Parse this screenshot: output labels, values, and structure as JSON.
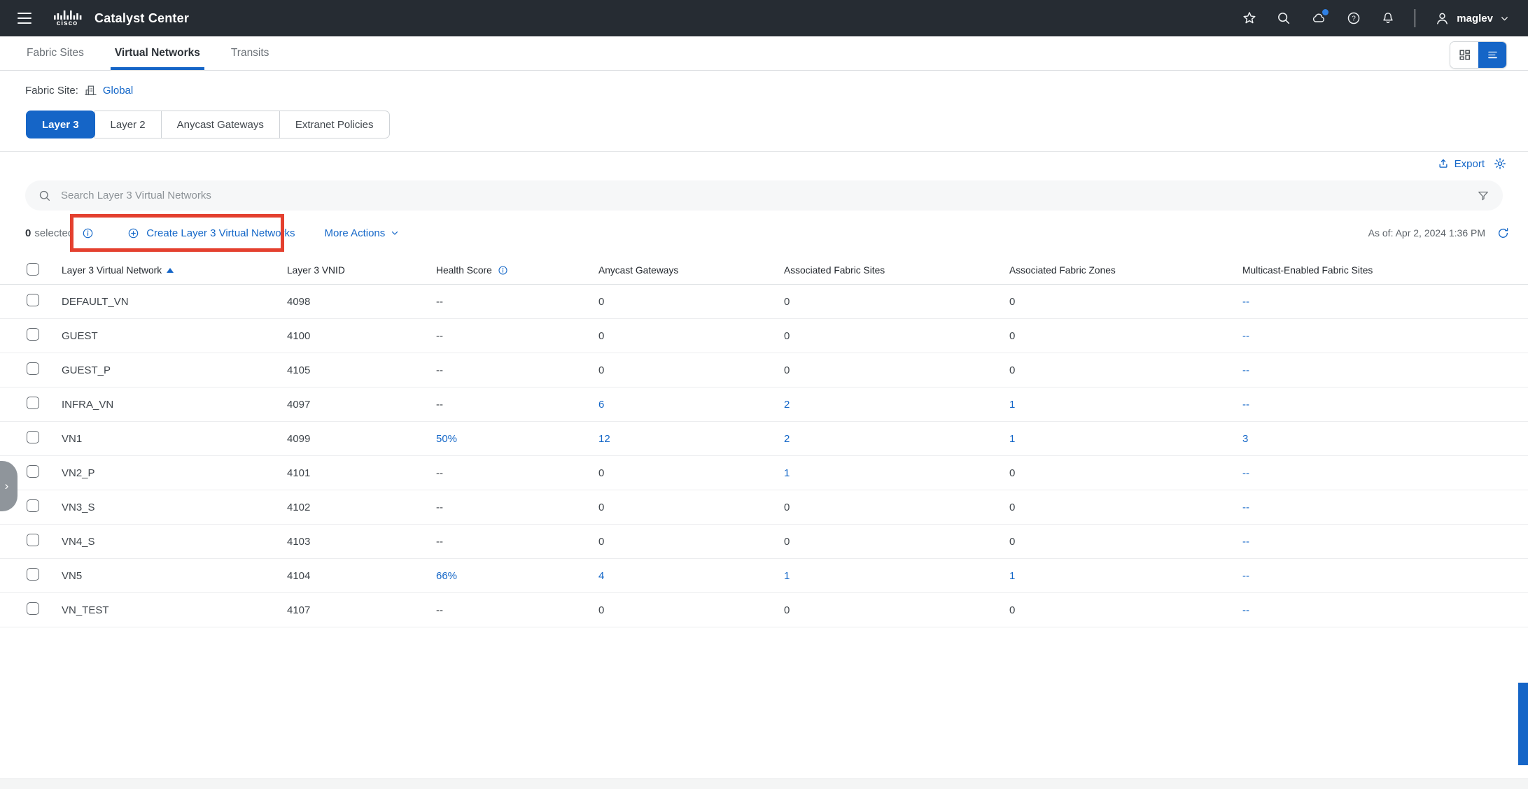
{
  "colors": {
    "accent": "#1565c7",
    "link": "#1467c8",
    "highlight": "#e4402f",
    "header_bg": "#262c33"
  },
  "header": {
    "brand": "cisco",
    "title": "Catalyst Center",
    "username": "maglev"
  },
  "nav_tabs": [
    {
      "label": "Fabric Sites",
      "active": false
    },
    {
      "label": "Virtual Networks",
      "active": true
    },
    {
      "label": "Transits",
      "active": false
    }
  ],
  "fabric_site": {
    "label": "Fabric Site:",
    "value": "Global"
  },
  "layer_tabs": [
    {
      "label": "Layer 3",
      "active": true
    },
    {
      "label": "Layer 2",
      "active": false
    },
    {
      "label": "Anycast Gateways",
      "active": false
    },
    {
      "label": "Extranet Policies",
      "active": false
    }
  ],
  "toolbar": {
    "export_label": "Export"
  },
  "search": {
    "placeholder": "Search Layer 3 Virtual Networks"
  },
  "actions": {
    "selected_count": "0",
    "selected_label": "selected",
    "create_label": "Create Layer 3 Virtual Networks",
    "more_label": "More Actions",
    "as_of": "As of: Apr 2, 2024 1:36 PM"
  },
  "table": {
    "columns": [
      "Layer 3 Virtual Network",
      "Layer 3 VNID",
      "Health Score",
      "Anycast Gateways",
      "Associated Fabric Sites",
      "Associated Fabric Zones",
      "Multicast-Enabled Fabric Sites"
    ],
    "rows": [
      {
        "cells": [
          {
            "text": "DEFAULT_VN",
            "link": false
          },
          {
            "text": "4098",
            "link": false
          },
          {
            "text": "--",
            "link": false
          },
          {
            "text": "0",
            "link": false
          },
          {
            "text": "0",
            "link": false
          },
          {
            "text": "0",
            "link": false
          },
          {
            "text": "--",
            "link": true
          }
        ]
      },
      {
        "cells": [
          {
            "text": "GUEST",
            "link": false
          },
          {
            "text": "4100",
            "link": false
          },
          {
            "text": "--",
            "link": false
          },
          {
            "text": "0",
            "link": false
          },
          {
            "text": "0",
            "link": false
          },
          {
            "text": "0",
            "link": false
          },
          {
            "text": "--",
            "link": true
          }
        ]
      },
      {
        "cells": [
          {
            "text": "GUEST_P",
            "link": false
          },
          {
            "text": "4105",
            "link": false
          },
          {
            "text": "--",
            "link": false
          },
          {
            "text": "0",
            "link": false
          },
          {
            "text": "0",
            "link": false
          },
          {
            "text": "0",
            "link": false
          },
          {
            "text": "--",
            "link": true
          }
        ]
      },
      {
        "cells": [
          {
            "text": "INFRA_VN",
            "link": false
          },
          {
            "text": "4097",
            "link": false
          },
          {
            "text": "--",
            "link": false
          },
          {
            "text": "6",
            "link": true
          },
          {
            "text": "2",
            "link": true
          },
          {
            "text": "1",
            "link": true
          },
          {
            "text": "--",
            "link": true
          }
        ]
      },
      {
        "cells": [
          {
            "text": "VN1",
            "link": false
          },
          {
            "text": "4099",
            "link": false
          },
          {
            "text": "50%",
            "link": true
          },
          {
            "text": "12",
            "link": true
          },
          {
            "text": "2",
            "link": true
          },
          {
            "text": "1",
            "link": true
          },
          {
            "text": "3",
            "link": true
          }
        ]
      },
      {
        "cells": [
          {
            "text": "VN2_P",
            "link": false
          },
          {
            "text": "4101",
            "link": false
          },
          {
            "text": "--",
            "link": false
          },
          {
            "text": "0",
            "link": false
          },
          {
            "text": "1",
            "link": true
          },
          {
            "text": "0",
            "link": false
          },
          {
            "text": "--",
            "link": true
          }
        ]
      },
      {
        "cells": [
          {
            "text": "VN3_S",
            "link": false
          },
          {
            "text": "4102",
            "link": false
          },
          {
            "text": "--",
            "link": false
          },
          {
            "text": "0",
            "link": false
          },
          {
            "text": "0",
            "link": false
          },
          {
            "text": "0",
            "link": false
          },
          {
            "text": "--",
            "link": true
          }
        ]
      },
      {
        "cells": [
          {
            "text": "VN4_S",
            "link": false
          },
          {
            "text": "4103",
            "link": false
          },
          {
            "text": "--",
            "link": false
          },
          {
            "text": "0",
            "link": false
          },
          {
            "text": "0",
            "link": false
          },
          {
            "text": "0",
            "link": false
          },
          {
            "text": "--",
            "link": true
          }
        ]
      },
      {
        "cells": [
          {
            "text": "VN5",
            "link": false
          },
          {
            "text": "4104",
            "link": false
          },
          {
            "text": "66%",
            "link": true
          },
          {
            "text": "4",
            "link": true
          },
          {
            "text": "1",
            "link": true
          },
          {
            "text": "1",
            "link": true
          },
          {
            "text": "--",
            "link": true
          }
        ]
      },
      {
        "cells": [
          {
            "text": "VN_TEST",
            "link": false
          },
          {
            "text": "4107",
            "link": false
          },
          {
            "text": "--",
            "link": false
          },
          {
            "text": "0",
            "link": false
          },
          {
            "text": "0",
            "link": false
          },
          {
            "text": "0",
            "link": false
          },
          {
            "text": "--",
            "link": true
          }
        ]
      }
    ]
  }
}
